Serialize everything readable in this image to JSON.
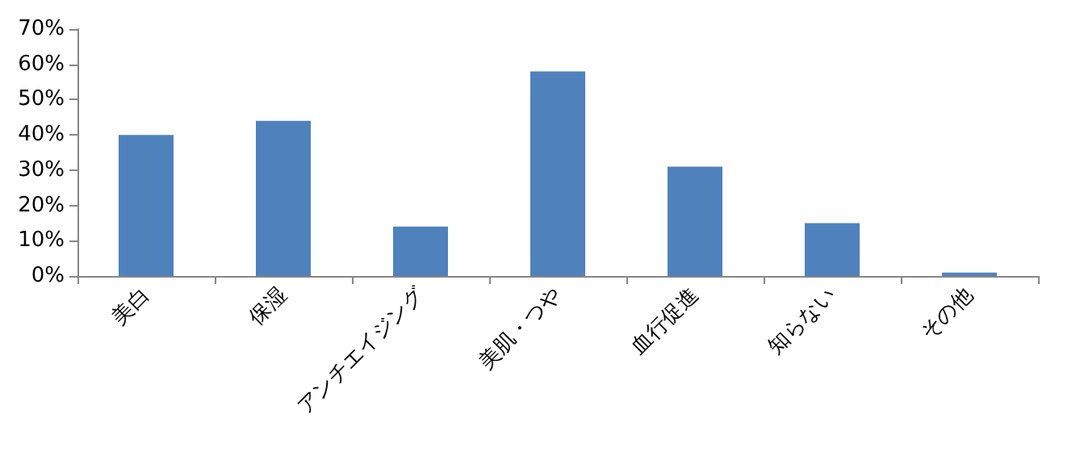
{
  "chart_data": {
    "type": "bar",
    "categories": [
      "美白",
      "保湿",
      "アンチエイジング",
      "美肌・つや",
      "血行促進",
      "知らない",
      "その他"
    ],
    "values": [
      40,
      44,
      14,
      58,
      31,
      15,
      1
    ],
    "color": "#4f81bd",
    "ylim": [
      0,
      70
    ],
    "yticks": [
      {
        "value": 0,
        "label": "0%"
      },
      {
        "value": 10,
        "label": "10%"
      },
      {
        "value": 20,
        "label": "20%"
      },
      {
        "value": 30,
        "label": "30%"
      },
      {
        "value": 40,
        "label": "40%"
      },
      {
        "value": 50,
        "label": "50%"
      },
      {
        "value": 60,
        "label": "60%"
      },
      {
        "value": 70,
        "label": "70%"
      }
    ],
    "grid": false
  }
}
